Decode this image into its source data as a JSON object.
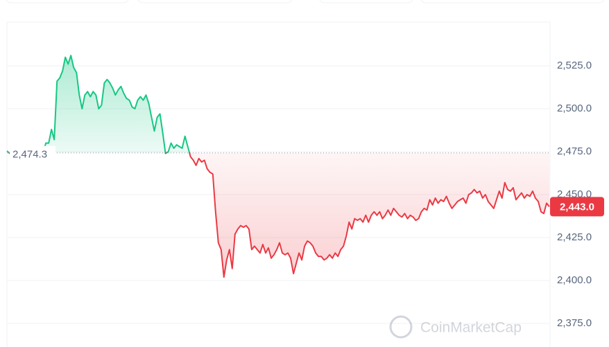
{
  "chart_data": {
    "type": "line",
    "values": [
      2475.5,
      2474.0,
      2474.3,
      2474.3,
      2474.3,
      2474.3,
      2474.3,
      2474.3,
      2474.3,
      2474.3,
      2474.3,
      2474.3,
      2474.3,
      2474.3,
      2480,
      2480,
      2488,
      2482,
      2516,
      2518,
      2522,
      2530,
      2526,
      2531,
      2524,
      2521,
      2508,
      2500,
      2508,
      2510,
      2507,
      2510,
      2508,
      2500,
      2502,
      2515,
      2517,
      2515,
      2512,
      2508,
      2511,
      2513,
      2509,
      2506,
      2505,
      2501,
      2500,
      2505,
      2507,
      2505,
      2508,
      2503,
      2495,
      2487,
      2495,
      2497,
      2486,
      2474,
      2475,
      2480,
      2477,
      2479,
      2478,
      2477,
      2484,
      2478,
      2472,
      2470,
      2467,
      2471,
      2469,
      2470,
      2465,
      2463,
      2462,
      2440,
      2422,
      2418,
      2402,
      2412,
      2418,
      2407,
      2427,
      2430,
      2432,
      2431,
      2432,
      2430,
      2418,
      2420,
      2418,
      2416,
      2421,
      2416,
      2419,
      2413,
      2415,
      2418,
      2422,
      2416,
      2415,
      2416,
      2413,
      2404,
      2410,
      2416,
      2412,
      2420,
      2423,
      2422,
      2420,
      2416,
      2414,
      2414,
      2412,
      2413,
      2415,
      2413,
      2416,
      2414,
      2418,
      2420,
      2426,
      2434,
      2430,
      2436,
      2435,
      2436,
      2434,
      2438,
      2434,
      2438,
      2440,
      2438,
      2440,
      2436,
      2438,
      2441,
      2438,
      2442,
      2440,
      2438,
      2437,
      2439,
      2436,
      2438,
      2437,
      2435,
      2436,
      2440,
      2442,
      2441,
      2447,
      2444,
      2448,
      2445,
      2447,
      2446,
      2449,
      2445,
      2442,
      2444,
      2446,
      2447,
      2448,
      2445,
      2450,
      2451,
      2453,
      2451,
      2452,
      2448,
      2450,
      2446,
      2444,
      2442,
      2447,
      2452,
      2448,
      2457,
      2453,
      2452,
      2454,
      2447,
      2449,
      2451,
      2448,
      2450,
      2449,
      2452,
      2448,
      2446,
      2440,
      2439,
      2445,
      2443
    ],
    "baseline": {
      "value": 2474.3,
      "label": "2,474.3"
    },
    "last_price": {
      "value": 2443.0,
      "label": "2,443.0"
    },
    "up_color": "#16c784",
    "down_color": "#ea3943",
    "ylim": [
      2361.3,
      2550.4
    ],
    "yticks": [
      {
        "value": 2375,
        "label": "2,375.0"
      },
      {
        "value": 2400,
        "label": "2,400.0"
      },
      {
        "value": 2425,
        "label": "2,425.0"
      },
      {
        "value": 2450,
        "label": "2,450.0"
      },
      {
        "value": 2475,
        "label": "2,475.0"
      },
      {
        "value": 2500,
        "label": "2,500.0"
      },
      {
        "value": 2525,
        "label": "2,525.0"
      }
    ],
    "grid": true,
    "watermark": "CoinMarketCap"
  }
}
